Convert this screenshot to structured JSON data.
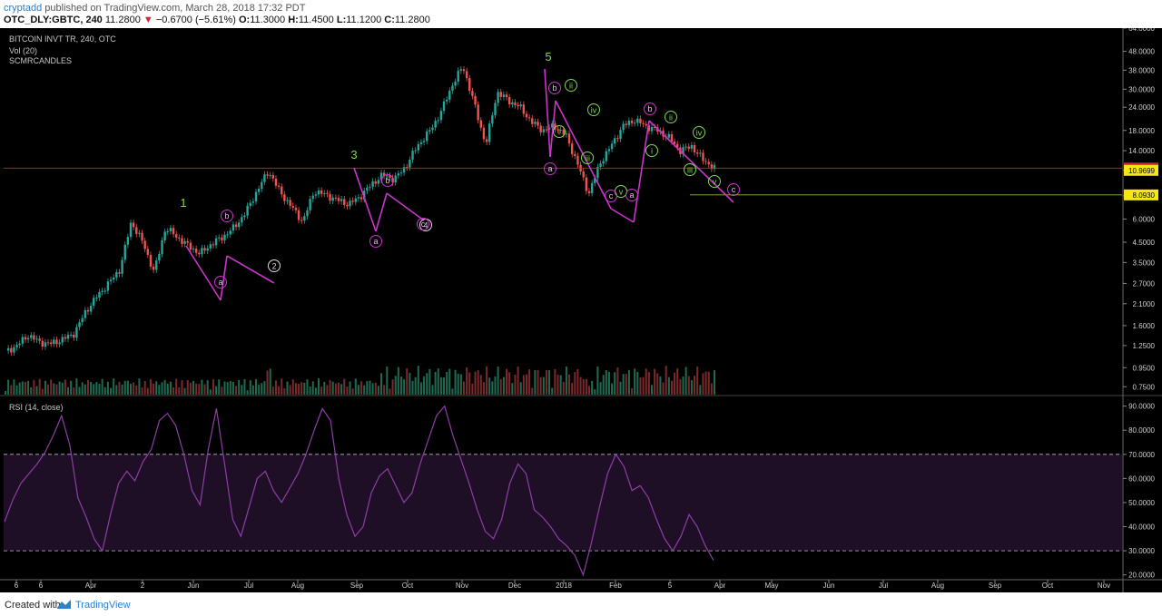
{
  "header": {
    "publisher": "cryptadd",
    "published_text": "published on TradingView.com, March 28, 2018 17:32 PDT",
    "symbol": "OTC_DLY:GBTC, 240",
    "last": "11.2800",
    "change": "−0.6700 (−5.61%)",
    "o_label": "O:",
    "o_value": "11.3000",
    "h_label": "H:",
    "h_value": "11.4500",
    "l_label": "L:",
    "l_value": "11.1200",
    "c_label": "C:",
    "c_value": "11.2800"
  },
  "pane_titles": {
    "main": "BITCOIN INVT TR, 240, OTC",
    "vol": "Vol (20)",
    "indicator": "SCMRCANDLES",
    "rsi": "RSI (14, close)"
  },
  "footer": {
    "created_with": "Created with",
    "brand": "TradingView"
  },
  "colors": {
    "background": "#000000",
    "up": "#26a69a",
    "down": "#ef5350",
    "wave_line": "#cc33cc",
    "wave_green": "#7cdb50",
    "rsi_line": "#8e3ea6",
    "rsi_band": "#1e0f26",
    "price_line": "#d0262f",
    "level_yellow": "#f5e617"
  },
  "chart_data": [
    {
      "type": "candlestick",
      "title": "BITCOIN INVT TR, 240, OTC",
      "scale": "log",
      "ylim": [
        0.68,
        64
      ],
      "x_tick_labels": [
        "6",
        "6",
        "Apr",
        "2",
        "Jun",
        "Jul",
        "Aug",
        "Sep",
        "Oct",
        "Nov",
        "Dec",
        "2018",
        "Feb",
        "5",
        "Apr",
        "May",
        "Jun",
        "Jul",
        "Aug",
        "Sep",
        "Oct",
        "Nov"
      ],
      "y_tick_labels": [
        "64.0000",
        "48.0000",
        "38.0000",
        "30.0000",
        "24.0000",
        "18.0000",
        "14.0000",
        "11.0000",
        "8.0000",
        "6.0000",
        "4.5000",
        "3.5000",
        "2.7000",
        "2.1000",
        "1.6000",
        "1.2500",
        "0.9500",
        "0.7500"
      ],
      "price_labels": [
        "11.2800",
        "10.9699",
        "8.0930"
      ],
      "close_path": [
        [
          "6",
          1.15
        ],
        [
          "6",
          1.25
        ],
        [
          "6",
          1.42
        ],
        [
          "Apr",
          1.3
        ],
        [
          "Apr",
          1.28
        ],
        [
          "Apr",
          1.35
        ],
        [
          "2",
          1.45
        ],
        [
          "2",
          1.9
        ],
        [
          "2",
          2.3
        ],
        [
          "2",
          2.7
        ],
        [
          "2",
          3.2
        ],
        [
          "Jun",
          5.8
        ],
        [
          "Jun",
          4.5
        ],
        [
          "Jun",
          3.1
        ],
        [
          "Jun",
          5.4
        ],
        [
          "Jun",
          4.8
        ],
        [
          "Jul",
          4.3
        ],
        [
          "Jul",
          3.9
        ],
        [
          "Jul",
          4.4
        ],
        [
          "Aug",
          4.8
        ],
        [
          "Aug",
          5.4
        ],
        [
          "Aug",
          6.5
        ],
        [
          "Aug",
          8.5
        ],
        [
          "Sep",
          10.9
        ],
        [
          "Sep",
          8.4
        ],
        [
          "Sep",
          7.0
        ],
        [
          "Sep",
          5.8
        ],
        [
          "Sep",
          8.5
        ],
        [
          "Oct",
          8.1
        ],
        [
          "Oct",
          7.6
        ],
        [
          "Oct",
          7.2
        ],
        [
          "Oct",
          7.9
        ],
        [
          "Nov",
          9.2
        ],
        [
          "Nov",
          10.4
        ],
        [
          "Nov",
          9.8
        ],
        [
          "Nov",
          11.5
        ],
        [
          "Nov",
          14.8
        ],
        [
          "Dec",
          17.5
        ],
        [
          "Dec",
          22
        ],
        [
          "Dec",
          31
        ],
        [
          "Dec",
          40
        ],
        [
          "Dec",
          25
        ],
        [
          "Dec",
          15
        ],
        [
          "Dec",
          29
        ],
        [
          "2018",
          26
        ],
        [
          "2018",
          24
        ],
        [
          "2018",
          20
        ],
        [
          "2018",
          18
        ],
        [
          "2018",
          19
        ],
        [
          "2018",
          17
        ],
        [
          "Feb",
          12
        ],
        [
          "Feb",
          8.2
        ],
        [
          "Feb",
          12
        ],
        [
          "Feb",
          15
        ],
        [
          "Feb",
          19
        ],
        [
          "Feb",
          20.5
        ],
        [
          "5",
          19
        ],
        [
          "5",
          18
        ],
        [
          "5",
          16.5
        ],
        [
          "5",
          14
        ],
        [
          "5",
          14.8
        ],
        [
          "Apr",
          12.5
        ],
        [
          "Apr",
          11.28
        ]
      ],
      "wave_labels_green": [
        "1",
        "2",
        "3",
        "4",
        "5",
        "i",
        "ii",
        "iii",
        "iv",
        "v",
        "i",
        "ii",
        "iii",
        "iv",
        "v"
      ],
      "wave_labels_magenta": [
        "a",
        "b",
        "a",
        "b",
        "c",
        "a",
        "b",
        "c",
        "a",
        "b",
        "c"
      ]
    },
    {
      "type": "bar",
      "title": "Vol (20)",
      "note": "volume histogram with moving average"
    },
    {
      "type": "line",
      "title": "RSI (14, close)",
      "ylim": [
        18,
        94
      ],
      "y_tick_labels": [
        "90.0000",
        "80.0000",
        "70.0000",
        "60.0000",
        "50.0000",
        "40.0000",
        "30.0000",
        "20.0000"
      ],
      "band": [
        30,
        70
      ],
      "values": [
        42,
        51,
        58,
        62,
        66,
        71,
        78,
        86,
        74,
        52,
        44,
        35,
        30,
        45,
        58,
        63,
        59,
        67,
        72,
        84,
        87,
        82,
        70,
        55,
        49,
        72,
        89,
        66,
        43,
        36,
        48,
        60,
        63,
        55,
        50,
        56,
        62,
        70,
        80,
        89,
        84,
        60,
        45,
        36,
        40,
        54,
        61,
        64,
        57,
        50,
        54,
        66,
        76,
        86,
        90,
        78,
        68,
        58,
        47,
        38,
        35,
        43,
        58,
        66,
        62,
        47,
        44,
        40,
        35,
        32,
        28,
        20,
        33,
        48,
        62,
        70,
        65,
        55,
        57,
        52,
        43,
        35,
        30,
        36,
        45,
        40,
        32,
        26
      ]
    }
  ]
}
